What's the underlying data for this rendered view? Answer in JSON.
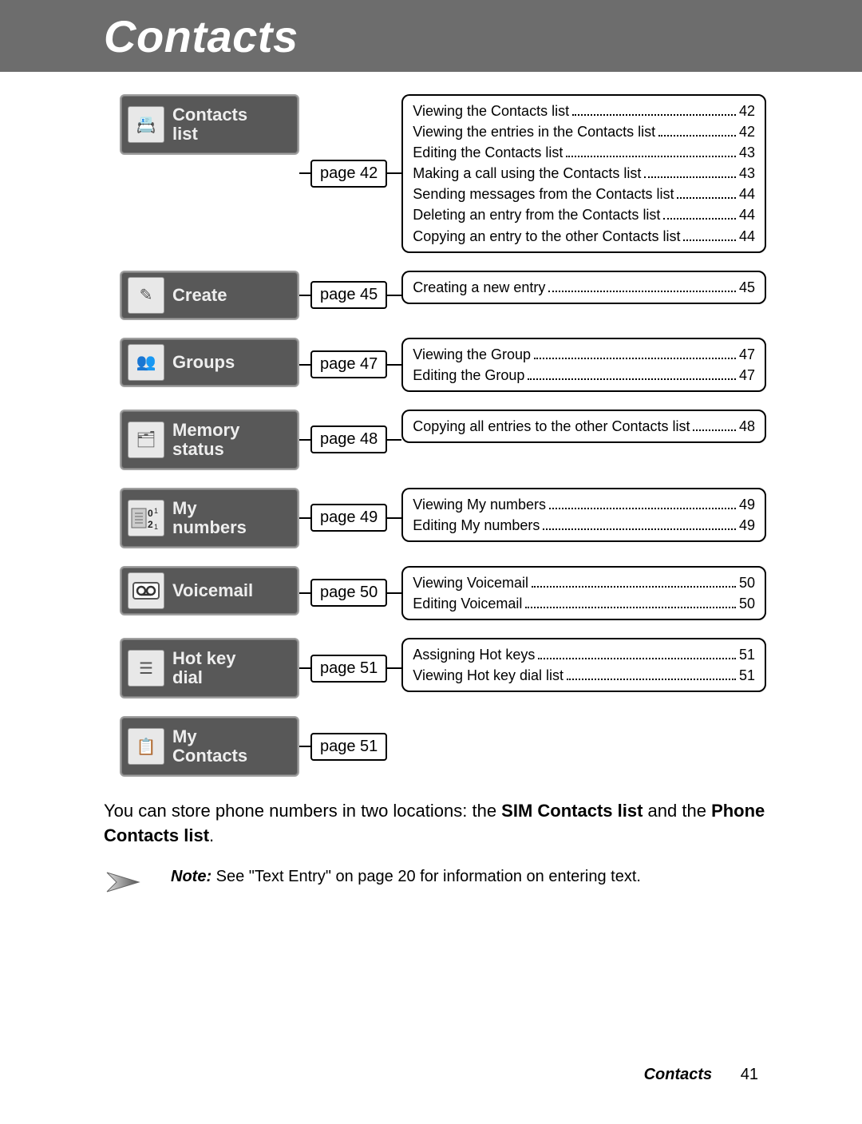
{
  "header": {
    "title": "Contacts"
  },
  "sections": [
    {
      "label": "Contacts\nlist",
      "page": "page 42",
      "tall": true,
      "icon": "contacts-list-icon",
      "glyph": "📇",
      "items": [
        {
          "label": "Viewing the Contacts list",
          "page": "42"
        },
        {
          "label": "Viewing the entries in the Contacts list",
          "page": "42"
        },
        {
          "label": "Editing the Contacts list",
          "page": "43"
        },
        {
          "label": "Making a call using the Contacts list",
          "page": "43"
        },
        {
          "label": "Sending messages from the Contacts list",
          "page": "44"
        },
        {
          "label": "Deleting an entry from the Contacts list",
          "page": "44"
        },
        {
          "label": "Copying an entry to the other Contacts list",
          "page": "44"
        }
      ]
    },
    {
      "label": "Create",
      "page": "page 45",
      "tall": false,
      "icon": "create-icon",
      "glyph": "✎",
      "items": [
        {
          "label": "Creating a new entry",
          "page": "45"
        }
      ]
    },
    {
      "label": "Groups",
      "page": "page 47",
      "tall": false,
      "icon": "groups-icon",
      "glyph": "👥",
      "items": [
        {
          "label": "Viewing the Group",
          "page": "47"
        },
        {
          "label": "Editing the Group",
          "page": "47"
        }
      ]
    },
    {
      "label": "Memory\nstatus",
      "page": "page 48",
      "tall": true,
      "icon": "memory-status-icon",
      "glyph": "🗂",
      "items": [
        {
          "label": "Copying all entries to the other Contacts list",
          "page": "48"
        }
      ]
    },
    {
      "label": "My\nnumbers",
      "page": "page 49",
      "tall": true,
      "icon": "my-numbers-icon",
      "glyph": "",
      "items": [
        {
          "label": "Viewing My numbers",
          "page": "49"
        },
        {
          "label": "Editing My numbers",
          "page": "49"
        }
      ]
    },
    {
      "label": "Voicemail",
      "page": "page 50",
      "tall": false,
      "icon": "voicemail-icon",
      "glyph": "",
      "items": [
        {
          "label": "Viewing Voicemail",
          "page": "50"
        },
        {
          "label": "Editing Voicemail",
          "page": "50"
        }
      ]
    },
    {
      "label": "Hot key\ndial",
      "page": "page 51",
      "tall": true,
      "icon": "hot-key-dial-icon",
      "glyph": "☰",
      "items": [
        {
          "label": "Assigning Hot keys",
          "page": "51"
        },
        {
          "label": "Viewing Hot key dial list",
          "page": "51"
        }
      ]
    },
    {
      "label": "My\nContacts",
      "page": "page 51",
      "tall": true,
      "icon": "my-contacts-icon",
      "glyph": "📋",
      "items": []
    }
  ],
  "body": {
    "prefix": "You can store phone numbers in two locations: the ",
    "bold1": "SIM Contacts list",
    "mid": " and the ",
    "bold2": "Phone Contacts list",
    "suffix": "."
  },
  "note": {
    "bold": "Note:",
    "text": " See \"Text Entry\" on page 20 for information on entering text."
  },
  "footer": {
    "title": "Contacts",
    "page": "41"
  },
  "colors": {
    "header_bg": "#6d6d6d",
    "card_bg": "#585858",
    "card_text": "#eeeeee",
    "border": "#000000"
  }
}
